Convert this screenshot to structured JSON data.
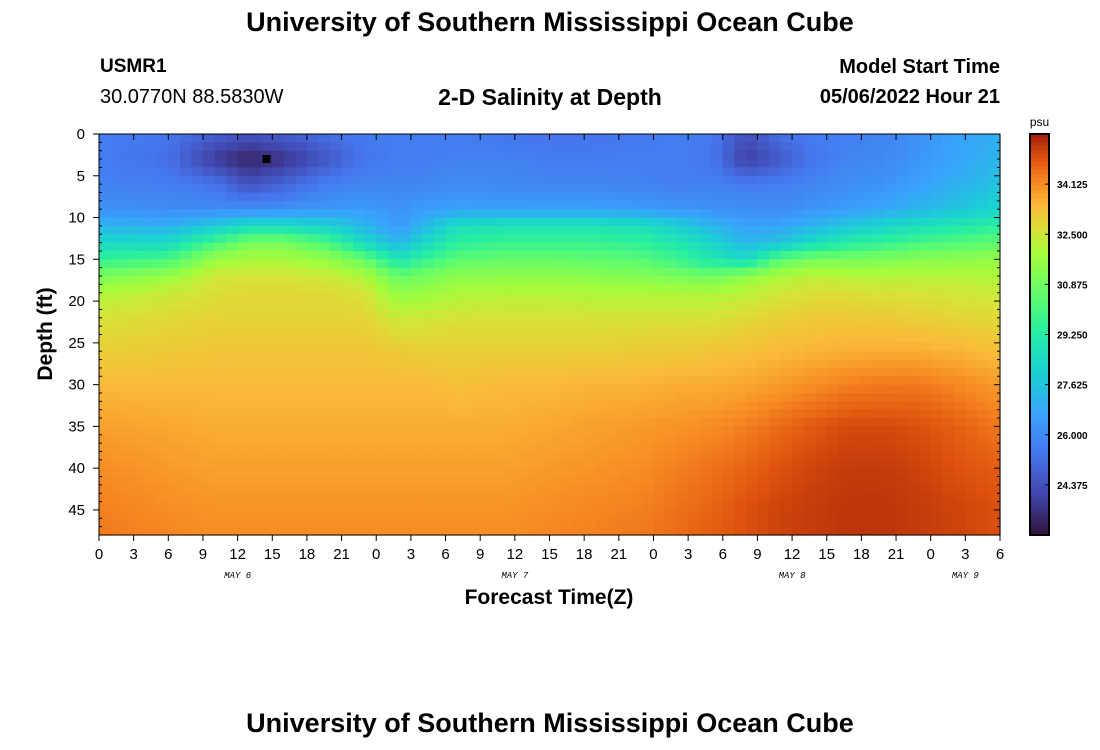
{
  "header": {
    "title": "University of Southern Mississippi Ocean Cube",
    "footer_title": "University of Southern Mississippi Ocean Cube",
    "station": "USMR1",
    "coordinates": "30.0770N  88.5830W",
    "subtitle": "2-D Salinity at Depth",
    "model_start_label": "Model Start Time",
    "model_start_value": "05/06/2022 Hour 21"
  },
  "chart_data": {
    "type": "heatmap",
    "title": "2-D Salinity at Depth",
    "xlabel": "Forecast Time(Z)",
    "ylabel": "Depth (ft)",
    "x_tick_labels": [
      "0",
      "3",
      "6",
      "9",
      "12",
      "15",
      "18",
      "21",
      "0",
      "3",
      "6",
      "9",
      "12",
      "15",
      "18",
      "21",
      "0",
      "3",
      "6",
      "9",
      "12",
      "15",
      "18",
      "21",
      "0",
      "3",
      "6"
    ],
    "date_labels": [
      {
        "label": "MAY 6",
        "at_tick": 4
      },
      {
        "label": "MAY 7",
        "at_tick": 12
      },
      {
        "label": "MAY 8",
        "at_tick": 20
      },
      {
        "label": "MAY 9",
        "at_tick": 25
      }
    ],
    "y_ticks": [
      0,
      5,
      10,
      15,
      20,
      25,
      30,
      35,
      40,
      45
    ],
    "ylim": [
      0,
      48
    ],
    "x_range_hours": [
      0,
      78
    ],
    "colorbar": {
      "unit": "psu",
      "ticks": [
        "34.125",
        "32.500",
        "30.875",
        "29.250",
        "27.625",
        "26.000",
        "24.375"
      ],
      "range": [
        22.75,
        35.75
      ]
    },
    "marker": {
      "hour": 14.5,
      "depth_ft": 3
    },
    "salinity_grid": {
      "hours": [
        0,
        6,
        10,
        13,
        16,
        20,
        23,
        26,
        28,
        31,
        35,
        39,
        43,
        47,
        50,
        53,
        56,
        59,
        62,
        65,
        68,
        71,
        74,
        78
      ],
      "depths": [
        0,
        3,
        6,
        9,
        11,
        13,
        15,
        17,
        19,
        22,
        26,
        30,
        35,
        40,
        45,
        48
      ],
      "rows": [
        [
          25.6,
          25.4,
          24.8,
          24.5,
          24.8,
          25.2,
          25.5,
          25.6,
          25.6,
          25.6,
          25.4,
          25.3,
          25.3,
          25.5,
          25.6,
          25.5,
          24.4,
          25.2,
          25.6,
          25.7,
          25.8,
          26.2,
          26.6,
          27.0
        ],
        [
          25.6,
          25.2,
          23.8,
          23.2,
          23.6,
          24.6,
          25.4,
          25.6,
          25.6,
          25.7,
          25.7,
          25.6,
          25.6,
          25.6,
          25.6,
          25.4,
          23.9,
          24.6,
          25.4,
          25.8,
          25.9,
          26.3,
          26.7,
          27.2
        ],
        [
          25.7,
          25.6,
          25.3,
          24.4,
          24.9,
          25.6,
          25.8,
          25.8,
          25.8,
          26.0,
          25.9,
          25.8,
          25.8,
          25.7,
          25.6,
          25.7,
          25.5,
          25.6,
          25.8,
          26.1,
          26.2,
          26.6,
          27.0,
          27.6
        ],
        [
          26.2,
          26.0,
          26.0,
          26.0,
          26.1,
          26.4,
          26.5,
          26.2,
          26.5,
          26.6,
          26.6,
          26.6,
          26.6,
          26.5,
          26.3,
          26.2,
          26.1,
          26.0,
          26.3,
          26.5,
          26.8,
          27.2,
          27.6,
          28.2
        ],
        [
          27.2,
          27.0,
          27.8,
          28.5,
          28.5,
          28.0,
          27.2,
          26.4,
          27.2,
          28.6,
          28.8,
          28.8,
          28.8,
          28.6,
          28.0,
          27.2,
          26.6,
          26.7,
          27.2,
          27.8,
          28.2,
          28.6,
          29.0,
          29.4
        ],
        [
          28.3,
          28.4,
          30.0,
          31.0,
          31.0,
          30.0,
          28.3,
          27.2,
          28.2,
          29.4,
          29.7,
          29.7,
          29.7,
          29.5,
          29.0,
          28.2,
          27.2,
          27.6,
          28.6,
          29.2,
          29.6,
          30.0,
          30.2,
          30.5
        ],
        [
          29.6,
          30.0,
          31.6,
          31.9,
          31.9,
          31.5,
          30.6,
          28.8,
          29.6,
          30.4,
          30.6,
          30.6,
          30.5,
          30.3,
          29.8,
          29.0,
          28.4,
          30.4,
          31.0,
          31.0,
          31.1,
          31.3,
          31.4,
          31.6
        ],
        [
          31.0,
          31.6,
          32.5,
          32.6,
          32.6,
          32.4,
          32.0,
          30.6,
          30.9,
          31.4,
          31.4,
          31.5,
          31.3,
          31.2,
          31.0,
          30.8,
          31.4,
          32.0,
          32.2,
          32.1,
          32.1,
          32.1,
          32.1,
          32.0
        ],
        [
          32.0,
          32.4,
          32.7,
          32.8,
          32.8,
          32.8,
          32.6,
          31.5,
          31.6,
          32.0,
          32.1,
          32.1,
          32.0,
          32.0,
          32.0,
          32.0,
          32.2,
          32.5,
          32.7,
          32.7,
          32.6,
          32.6,
          32.5,
          32.4
        ],
        [
          32.6,
          32.8,
          32.9,
          32.9,
          32.9,
          32.9,
          32.9,
          32.4,
          32.5,
          32.6,
          32.6,
          32.6,
          32.6,
          32.6,
          32.6,
          32.6,
          32.8,
          33.0,
          33.1,
          33.1,
          33.1,
          33.0,
          32.9,
          32.8
        ],
        [
          33.0,
          33.1,
          33.2,
          33.2,
          33.2,
          33.2,
          33.2,
          33.1,
          33.0,
          33.0,
          33.0,
          33.0,
          33.0,
          33.1,
          33.1,
          33.2,
          33.3,
          33.4,
          33.5,
          33.6,
          33.6,
          33.6,
          33.5,
          33.3
        ],
        [
          33.4,
          33.4,
          33.4,
          33.4,
          33.4,
          33.4,
          33.4,
          33.4,
          33.4,
          33.3,
          33.4,
          33.4,
          33.5,
          33.5,
          33.6,
          33.6,
          33.7,
          33.9,
          34.1,
          34.3,
          34.4,
          34.4,
          34.2,
          33.9
        ],
        [
          33.8,
          33.7,
          33.6,
          33.6,
          33.6,
          33.6,
          33.6,
          33.6,
          33.6,
          33.6,
          33.6,
          33.7,
          33.8,
          33.9,
          34.0,
          34.1,
          34.3,
          34.6,
          34.9,
          35.1,
          35.1,
          35.0,
          34.8,
          34.4
        ],
        [
          34.1,
          33.9,
          33.8,
          33.8,
          33.8,
          33.8,
          33.8,
          33.8,
          33.8,
          33.8,
          33.8,
          33.9,
          34.0,
          34.1,
          34.3,
          34.5,
          34.7,
          35.0,
          35.2,
          35.3,
          35.3,
          35.2,
          35.0,
          34.8
        ],
        [
          34.3,
          34.1,
          34.0,
          34.0,
          34.0,
          34.0,
          34.0,
          34.0,
          34.0,
          34.0,
          34.0,
          34.1,
          34.2,
          34.3,
          34.5,
          34.7,
          35.0,
          35.2,
          35.3,
          35.4,
          35.4,
          35.3,
          35.2,
          35.0
        ],
        [
          34.4,
          34.2,
          34.1,
          34.1,
          34.1,
          34.1,
          34.1,
          34.1,
          34.1,
          34.1,
          34.1,
          34.2,
          34.3,
          34.4,
          34.6,
          34.8,
          35.0,
          35.2,
          35.3,
          35.4,
          35.4,
          35.3,
          35.2,
          35.0
        ]
      ]
    }
  }
}
